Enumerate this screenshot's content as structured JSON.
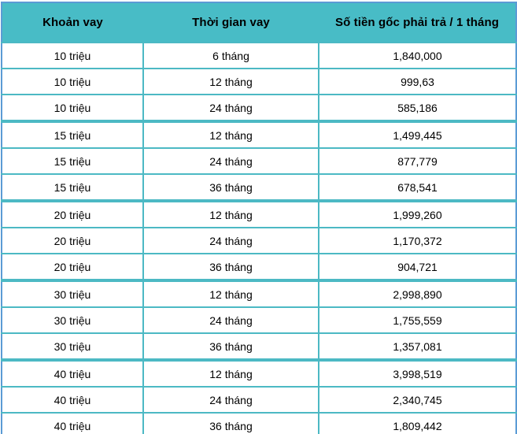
{
  "chart_data": {
    "type": "table",
    "columns": [
      "Khoản vay",
      "Thời gian vay",
      "Số tiền gốc phải trả / 1 tháng"
    ],
    "rows": [
      [
        "10 triệu",
        "6 tháng",
        "1,840,000"
      ],
      [
        "10 triệu",
        "12 tháng",
        "999,63"
      ],
      [
        "10 triệu",
        "24 tháng",
        "585,186"
      ],
      [
        "15 triệu",
        "12 tháng",
        "1,499,445"
      ],
      [
        "15 triệu",
        "24 tháng",
        "877,779"
      ],
      [
        "15 triệu",
        "36 tháng",
        "678,541"
      ],
      [
        "20 triệu",
        "12 tháng",
        "1,999,260"
      ],
      [
        "20 triệu",
        "24 tháng",
        "1,170,372"
      ],
      [
        "20 triệu",
        "36 tháng",
        "904,721"
      ],
      [
        "30 triệu",
        "12 tháng",
        "2,998,890"
      ],
      [
        "30 triệu",
        "24 tháng",
        "1,755,559"
      ],
      [
        "30 triệu",
        "36 tháng",
        "1,357,081"
      ],
      [
        "40 triệu",
        "12 tháng",
        "3,998,519"
      ],
      [
        "40 triệu",
        "24 tháng",
        "2,340,745"
      ],
      [
        "40 triệu",
        "36 tháng",
        "1,809,442"
      ]
    ],
    "group_start_row_indexes": [
      3,
      6,
      9,
      12
    ],
    "layout_hints": {
      "header_background": "teal",
      "grid": "on",
      "value_alignment": "center"
    }
  },
  "colors": {
    "header_teal": "#48BCC6",
    "grid_teal": "#4CB9C4",
    "outer_blue": "#5B9BD5",
    "faint_grid": "#CBD4DE",
    "text": "#000000"
  }
}
